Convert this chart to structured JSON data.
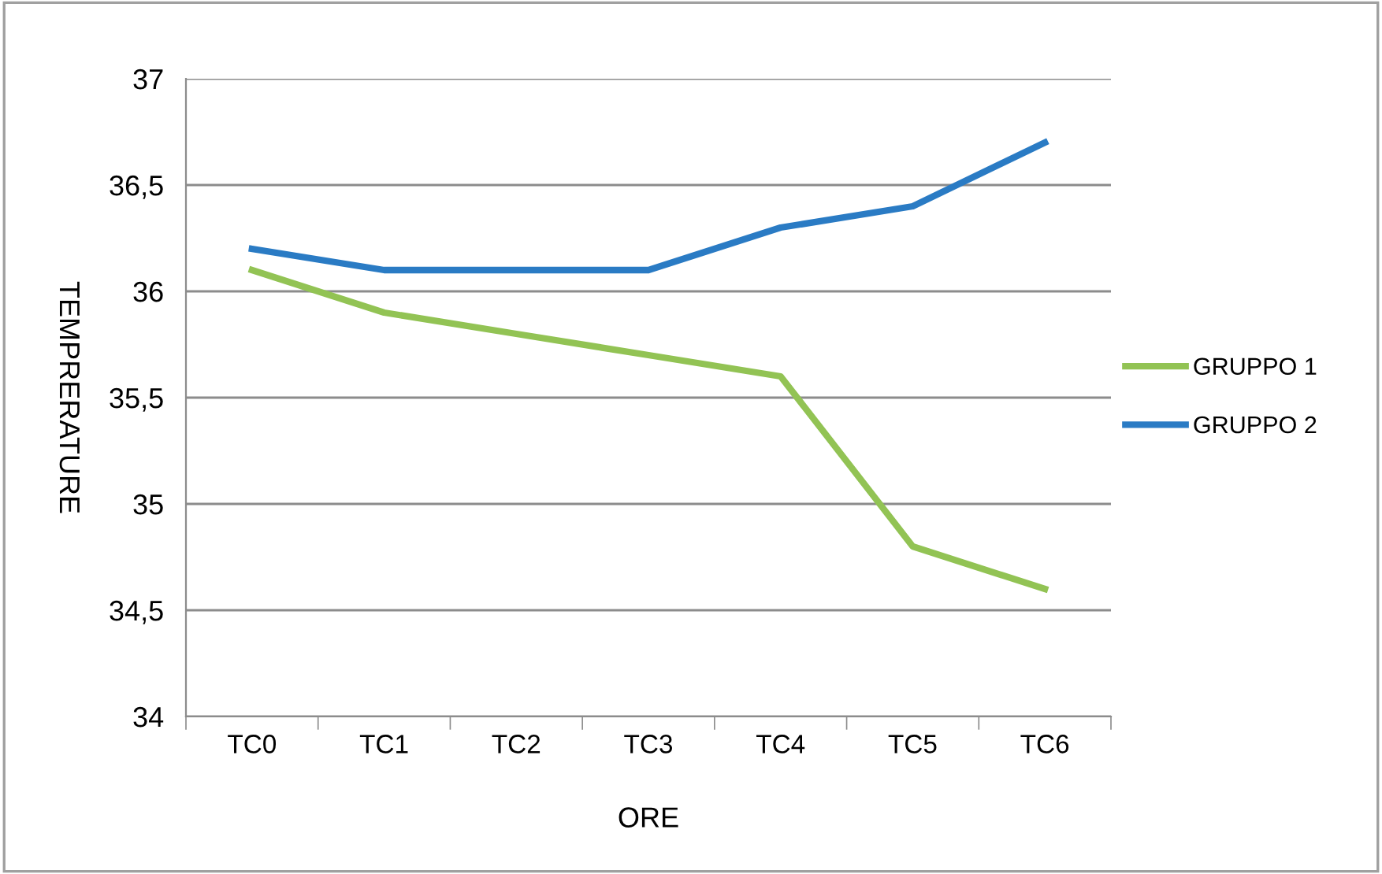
{
  "chart_data": {
    "type": "line",
    "xlabel": "ORE",
    "ylabel": "TEMPRERATURE",
    "categories": [
      "TC0",
      "TC1",
      "TC2",
      "TC3",
      "TC4",
      "TC5",
      "TC6"
    ],
    "series": [
      {
        "name": "GRUPPO 1",
        "color": "#92c354",
        "values": [
          36.1,
          35.9,
          35.8,
          35.7,
          35.6,
          34.8,
          34.6
        ]
      },
      {
        "name": "GRUPPO 2",
        "color": "#2a7bc4",
        "values": [
          36.2,
          36.1,
          36.1,
          36.1,
          36.3,
          36.4,
          36.7
        ]
      }
    ],
    "ylim": [
      34,
      37
    ],
    "yticks": [
      34,
      {
        "value": 34.5,
        "label": "34,5"
      },
      35,
      {
        "value": 35.5,
        "label": "35,5"
      },
      36,
      {
        "value": 36.5,
        "label": "36,5"
      },
      37
    ],
    "grid": "y",
    "legend": "right",
    "marker": "none",
    "line_style": "solid"
  }
}
